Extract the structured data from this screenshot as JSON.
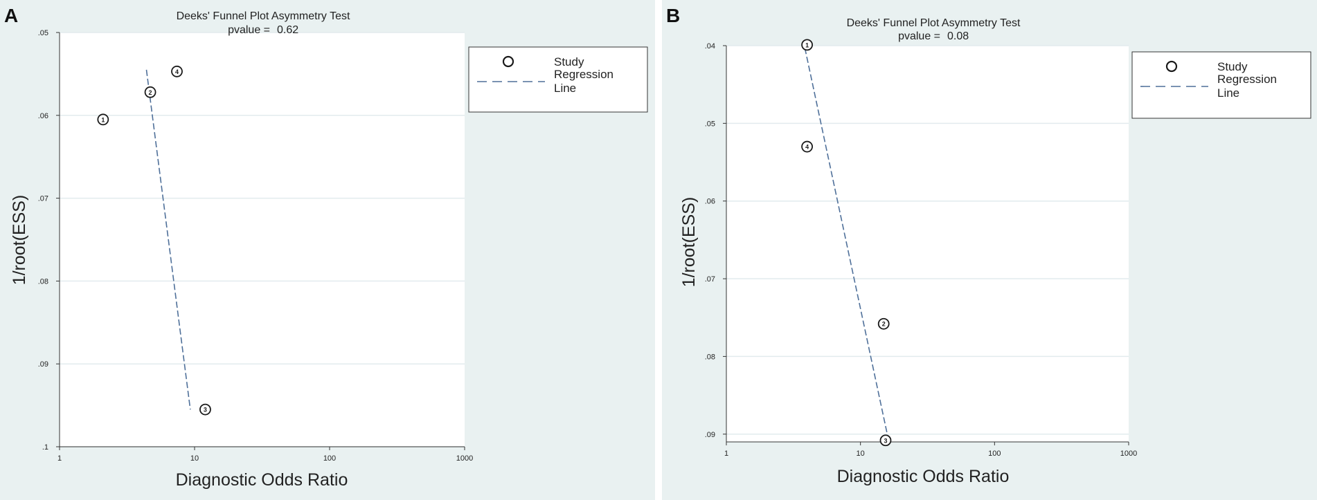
{
  "colors": {
    "panel_bg": "#e9f1f1",
    "plot_bg": "#ffffff",
    "grid": "#e2ebee",
    "regression": "#4e6f99",
    "marker": "#1a1a1a",
    "text": "#222222"
  },
  "legend": {
    "study_label": "Study",
    "regression_label_line1": "Regression",
    "regression_label_line2": "Line"
  },
  "chart_data": [
    {
      "panel_label": "A",
      "type": "scatter",
      "title": "Deeks' Funnel Plot Asymmetry Test",
      "pvalue_text": "pvalue =",
      "pvalue": "0.62",
      "xlabel": "Diagnostic Odds Ratio",
      "ylabel": "1/root(ESS)",
      "xscale": "log",
      "xlim": [
        1,
        1000
      ],
      "xticks": [
        1,
        10,
        100,
        1000
      ],
      "xtick_labels": [
        "1",
        "10",
        "100",
        "1000"
      ],
      "ylim": [
        0.05,
        0.1
      ],
      "y_inverted": true,
      "yticks": [
        0.05,
        0.06,
        0.07,
        0.08,
        0.09,
        0.1
      ],
      "ytick_labels": [
        ".05",
        ".06",
        ".07",
        ".08",
        ".09",
        ".1"
      ],
      "points": [
        {
          "label": "1",
          "x": 2.1,
          "y": 0.0605
        },
        {
          "label": "2",
          "x": 4.7,
          "y": 0.0572
        },
        {
          "label": "3",
          "x": 12.0,
          "y": 0.0955
        },
        {
          "label": "4",
          "x": 7.4,
          "y": 0.0547
        }
      ],
      "regression": {
        "x1": 4.4,
        "y1": 0.0545,
        "x2": 9.3,
        "y2": 0.0955
      }
    },
    {
      "panel_label": "B",
      "type": "scatter",
      "title": "Deeks' Funnel Plot Asymmetry Test",
      "pvalue_text": "pvalue =",
      "pvalue": "0.08",
      "xlabel": "Diagnostic Odds Ratio",
      "ylabel": "1/root(ESS)",
      "xscale": "log",
      "xlim": [
        1,
        1000
      ],
      "xticks": [
        1,
        10,
        100,
        1000
      ],
      "xtick_labels": [
        "1",
        "10",
        "100",
        "1000"
      ],
      "ylim": [
        0.04,
        0.091
      ],
      "y_inverted": true,
      "yticks": [
        0.04,
        0.05,
        0.06,
        0.07,
        0.08,
        0.09
      ],
      "ytick_labels": [
        ".04",
        ".05",
        ".06",
        ".07",
        ".08",
        ".09"
      ],
      "points": [
        {
          "label": "1",
          "x": 4.0,
          "y": 0.0399
        },
        {
          "label": "2",
          "x": 14.9,
          "y": 0.0758
        },
        {
          "label": "3",
          "x": 15.4,
          "y": 0.0908
        },
        {
          "label": "4",
          "x": 4.0,
          "y": 0.053
        }
      ],
      "regression": {
        "x1": 3.85,
        "y1": 0.0403,
        "x2": 16.3,
        "y2": 0.091
      }
    }
  ]
}
